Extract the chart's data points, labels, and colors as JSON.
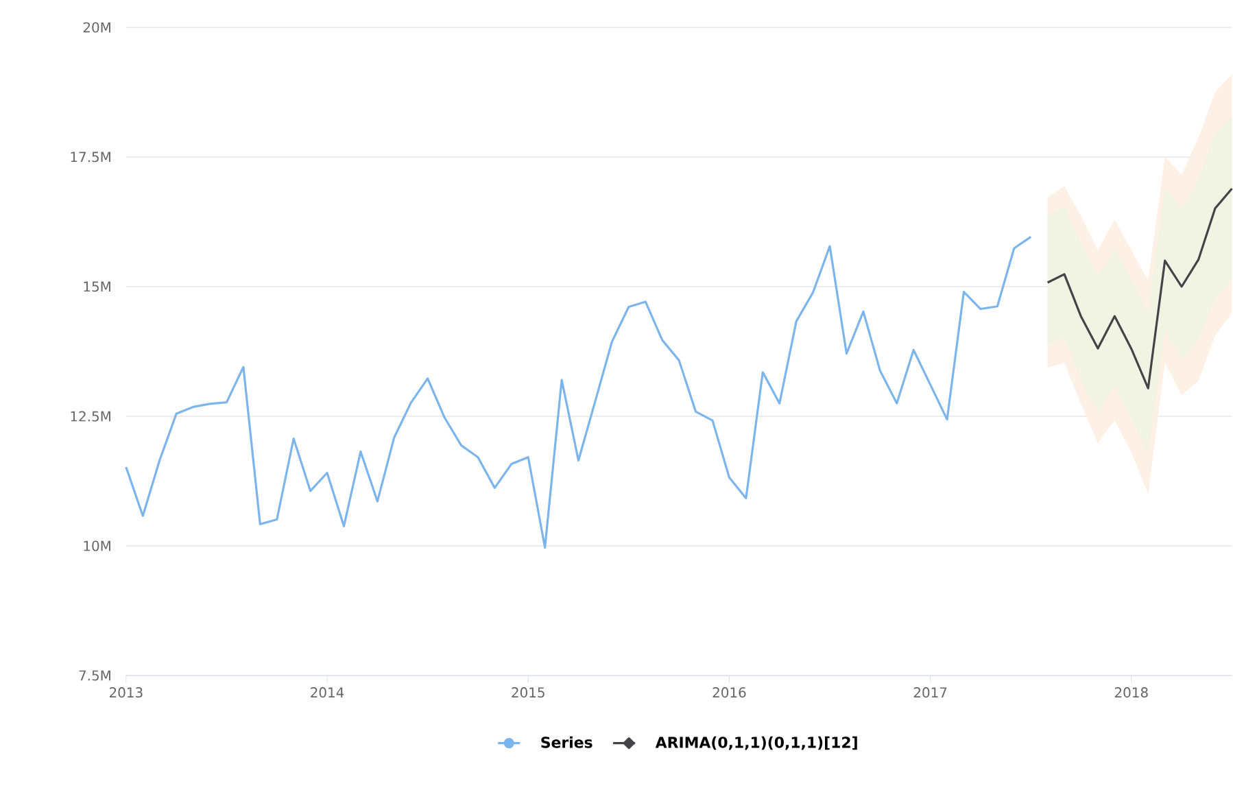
{
  "chart_data": {
    "type": "line",
    "x": [
      "2013-01",
      "2013-02",
      "2013-03",
      "2013-04",
      "2013-05",
      "2013-06",
      "2013-07",
      "2013-08",
      "2013-09",
      "2013-10",
      "2013-11",
      "2013-12",
      "2014-01",
      "2014-02",
      "2014-03",
      "2014-04",
      "2014-05",
      "2014-06",
      "2014-07",
      "2014-08",
      "2014-09",
      "2014-10",
      "2014-11",
      "2014-12",
      "2015-01",
      "2015-02",
      "2015-03",
      "2015-04",
      "2015-05",
      "2015-06",
      "2015-07",
      "2015-08",
      "2015-09",
      "2015-10",
      "2015-11",
      "2015-12",
      "2016-01",
      "2016-02",
      "2016-03",
      "2016-04",
      "2016-05",
      "2016-06",
      "2016-07",
      "2016-08",
      "2016-09",
      "2016-10",
      "2016-11",
      "2016-12",
      "2017-01",
      "2017-02",
      "2017-03",
      "2017-04",
      "2017-05",
      "2017-06",
      "2017-07"
    ],
    "series": [
      {
        "name": "Series",
        "color": "#7cb5ec",
        "values": [
          11520000,
          10580000,
          11650000,
          12550000,
          12680000,
          12740000,
          12770000,
          13450000,
          10420000,
          10510000,
          12070000,
          11060000,
          11410000,
          10380000,
          11820000,
          10860000,
          12090000,
          12760000,
          13230000,
          12480000,
          11940000,
          11710000,
          11120000,
          11580000,
          11710000,
          9970000,
          13200000,
          11650000,
          12790000,
          13940000,
          14610000,
          14710000,
          13970000,
          13580000,
          12590000,
          12420000,
          11320000,
          10920000,
          13350000,
          12750000,
          14330000,
          14890000,
          15780000,
          13710000,
          14520000,
          13380000,
          12750000,
          13780000,
          13110000,
          12440000,
          14900000,
          14570000,
          14620000,
          15740000,
          15960000
        ]
      },
      {
        "name": "ARIMA(0,1,1)(0,1,1)[12]",
        "color": "#434348",
        "x": [
          "2017-08",
          "2017-09",
          "2017-10",
          "2017-11",
          "2017-12",
          "2018-01",
          "2018-02",
          "2018-03",
          "2018-04",
          "2018-05",
          "2018-06",
          "2018-07"
        ],
        "values": [
          15080000,
          15240000,
          14420000,
          13810000,
          14430000,
          13800000,
          13040000,
          15500000,
          15000000,
          15520000,
          16510000,
          16890000
        ],
        "lower": [
          13880000,
          14020000,
          13180000,
          12560000,
          13090000,
          12470000,
          11760000,
          14150000,
          13620000,
          13970000,
          14770000,
          15120000
        ],
        "upper": [
          16360000,
          16540000,
          15830000,
          15210000,
          15740000,
          15120000,
          14500000,
          16900000,
          16500000,
          17070000,
          17960000,
          18300000
        ]
      },
      {
        "color": "#fdf0e4",
        "x": [
          "2017-08",
          "2017-09",
          "2017-10",
          "2017-11",
          "2017-12",
          "2018-01",
          "2018-02",
          "2018-03",
          "2018-04",
          "2018-05",
          "2018-06",
          "2018-07"
        ],
        "values": [
          null,
          null,
          null,
          null,
          null,
          null,
          null,
          null,
          null,
          null,
          null,
          null
        ],
        "lower": [
          13440000,
          13530000,
          12730000,
          11980000,
          12420000,
          11800000,
          11000000,
          13530000,
          12910000,
          13180000,
          14060000,
          14500000
        ],
        "upper": [
          16720000,
          16940000,
          16360000,
          15700000,
          16290000,
          15700000,
          15120000,
          17500000,
          17160000,
          17870000,
          18750000,
          19100000
        ]
      }
    ],
    "xlim": [
      "2013-01",
      "2018-07"
    ],
    "xticks": [
      "2013",
      "2014",
      "2015",
      "2016",
      "2017",
      "2018"
    ],
    "ylim": [
      7500000,
      20000000
    ],
    "yticks": [
      {
        "value": 7500000,
        "label": "7.5M"
      },
      {
        "value": 10000000,
        "label": "10M"
      },
      {
        "value": 12500000,
        "label": "12.5M"
      },
      {
        "value": 15000000,
        "label": "15M"
      },
      {
        "value": 17500000,
        "label": "17.5M"
      },
      {
        "value": 20000000,
        "label": "20M"
      }
    ],
    "grid": "y",
    "legend": "bottom"
  }
}
